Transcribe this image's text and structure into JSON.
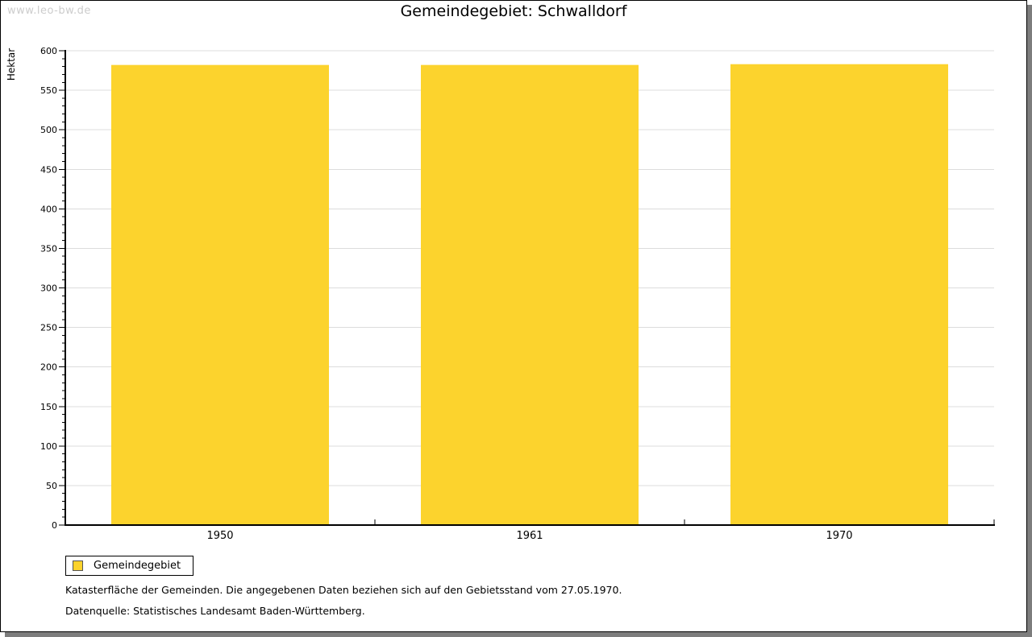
{
  "watermark": "www.leo-bw.de",
  "title": "Gemeindegebiet: Schwalldorf",
  "chart_data": {
    "type": "bar",
    "title": "Gemeindegebiet: Schwalldorf",
    "categories": [
      "1950",
      "1961",
      "1970"
    ],
    "series": [
      {
        "name": "Gemeindegebiet",
        "values": [
          582,
          582,
          583
        ]
      }
    ],
    "xlabel": "",
    "ylabel": "Hektar",
    "ylim": [
      0,
      600
    ],
    "y_major_step": 50,
    "y_minor_step": 10,
    "grid": true,
    "legend_position": "bottom-left",
    "bar_color": "#FCD32D",
    "grid_color": "#dcdcdc",
    "axis_color": "#000000"
  },
  "legend": {
    "items": [
      {
        "label": "Gemeindegebiet",
        "color": "#FCD32D"
      }
    ]
  },
  "footnotes": [
    "Katasterfläche der Gemeinden. Die angegebenen Daten beziehen sich auf den Gebietsstand vom 27.05.1970.",
    "Datenquelle: Statistisches Landesamt Baden-Württemberg."
  ]
}
